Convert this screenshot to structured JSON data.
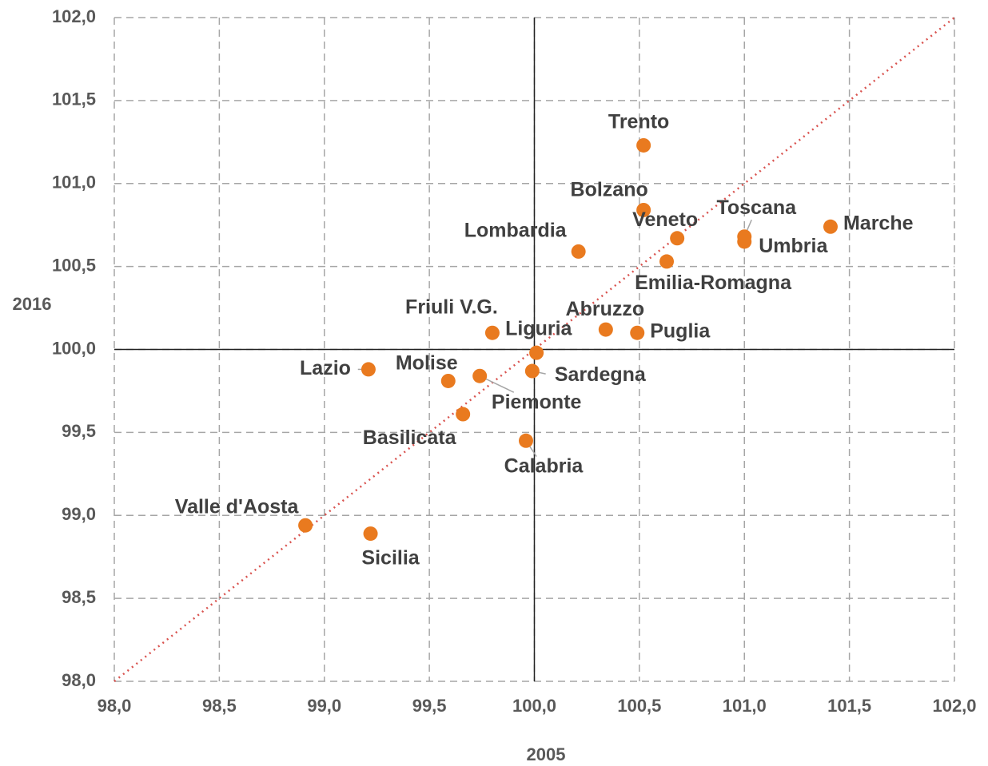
{
  "chart_data": {
    "type": "scatter",
    "x_label": "2005",
    "y_label": "2016",
    "labels": [
      "Trento",
      "Bolzano",
      "Veneto",
      "Toscana",
      "Umbria",
      "Marche",
      "Emilia-Romagna",
      "Lombardia",
      "Abruzzo",
      "Puglia",
      "Friuli V.G.",
      "Liguria",
      "Sardegna",
      "Lazio",
      "Molise",
      "Piemonte",
      "Basilicata",
      "Calabria",
      "Valle d'Aosta",
      "Sicilia"
    ],
    "x": [
      100.52,
      100.52,
      100.68,
      101.0,
      101.0,
      101.41,
      100.63,
      100.21,
      100.34,
      100.49,
      99.8,
      100.01,
      99.99,
      99.21,
      99.59,
      99.74,
      99.66,
      99.96,
      98.91,
      99.22
    ],
    "values": [
      101.23,
      100.84,
      100.67,
      100.68,
      100.65,
      100.74,
      100.53,
      100.59,
      100.12,
      100.1,
      100.1,
      99.98,
      99.87,
      99.88,
      99.81,
      99.84,
      99.61,
      99.45,
      98.94,
      98.89
    ],
    "color": "#e97a1f",
    "xlim": [
      98,
      102
    ],
    "ylim": [
      98,
      102
    ],
    "xticks": [
      {
        "value": 98,
        "label": "98,0"
      },
      {
        "value": 98.5,
        "label": "98,5"
      },
      {
        "value": 99,
        "label": "99,0"
      },
      {
        "value": 99.5,
        "label": "99,5"
      },
      {
        "value": 100,
        "label": "100,0"
      },
      {
        "value": 100.5,
        "label": "100,5"
      },
      {
        "value": 101,
        "label": "101,0"
      },
      {
        "value": 101.5,
        "label": "101,5"
      },
      {
        "value": 102,
        "label": "102,0"
      }
    ],
    "yticks": [
      {
        "value": 98,
        "label": "98,0"
      },
      {
        "value": 98.5,
        "label": "98,5"
      },
      {
        "value": 99,
        "label": "99,0"
      },
      {
        "value": 99.5,
        "label": "99,5"
      },
      {
        "value": 100,
        "label": "100,0"
      },
      {
        "value": 100.5,
        "label": "100,5"
      },
      {
        "value": 101,
        "label": "101,0"
      },
      {
        "value": 101.5,
        "label": "101,5"
      },
      {
        "value": 102,
        "label": "102,0"
      }
    ],
    "grid": true
  }
}
